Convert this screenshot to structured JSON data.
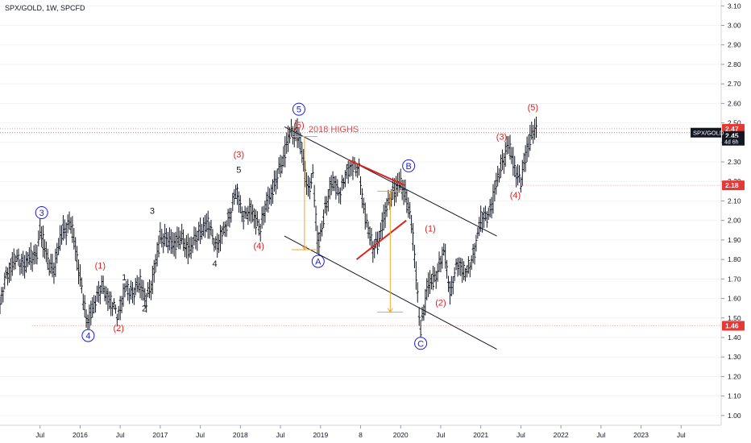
{
  "chart_data": {
    "type": "line",
    "title": "SPX/GOLD, 1W, SPCFD",
    "symbol_tag": "SPX/GOLD",
    "last_value": "2.45",
    "countdown": "4d 6h",
    "ylim": [
      0.95,
      3.13
    ],
    "xlim": [
      2015.0,
      2024.0
    ],
    "y_ticks": [
      "1.00",
      "1.10",
      "1.20",
      "1.30",
      "1.40",
      "1.50",
      "1.60",
      "1.70",
      "1.80",
      "1.90",
      "2.00",
      "2.10",
      "2.20",
      "2.30",
      "2.40",
      "2.50",
      "2.60",
      "2.70",
      "2.80",
      "2.90",
      "3.00",
      "3.10"
    ],
    "x_ticks": [
      {
        "t": 2015.5,
        "label": "Jul"
      },
      {
        "t": 2016.0,
        "label": "2016"
      },
      {
        "t": 2016.5,
        "label": "Jul"
      },
      {
        "t": 2017.0,
        "label": "2017"
      },
      {
        "t": 2017.5,
        "label": "Jul"
      },
      {
        "t": 2018.0,
        "label": "2018"
      },
      {
        "t": 2018.5,
        "label": "Jul"
      },
      {
        "t": 2019.0,
        "label": "2019"
      },
      {
        "t": 2019.5,
        "label": "8"
      },
      {
        "t": 2020.0,
        "label": "2020"
      },
      {
        "t": 2020.5,
        "label": "Jul"
      },
      {
        "t": 2021.0,
        "label": "2021"
      },
      {
        "t": 2021.5,
        "label": "Jul"
      },
      {
        "t": 2022.0,
        "label": "2022"
      },
      {
        "t": 2022.5,
        "label": "Jul"
      },
      {
        "t": 2023.0,
        "label": "2023"
      },
      {
        "t": 2023.5,
        "label": "Jul"
      }
    ],
    "price_path": [
      [
        2015.0,
        1.57
      ],
      [
        2015.08,
        1.72
      ],
      [
        2015.17,
        1.8
      ],
      [
        2015.3,
        1.78
      ],
      [
        2015.45,
        1.82
      ],
      [
        2015.5,
        1.95
      ],
      [
        2015.6,
        1.78
      ],
      [
        2015.68,
        1.75
      ],
      [
        2015.78,
        1.95
      ],
      [
        2015.88,
        1.98
      ],
      [
        2015.96,
        1.82
      ],
      [
        2016.03,
        1.62
      ],
      [
        2016.08,
        1.47
      ],
      [
        2016.15,
        1.55
      ],
      [
        2016.28,
        1.67
      ],
      [
        2016.38,
        1.58
      ],
      [
        2016.47,
        1.52
      ],
      [
        2016.55,
        1.64
      ],
      [
        2016.65,
        1.64
      ],
      [
        2016.75,
        1.67
      ],
      [
        2016.82,
        1.6
      ],
      [
        2016.9,
        1.67
      ],
      [
        2017.0,
        1.92
      ],
      [
        2017.12,
        1.88
      ],
      [
        2017.25,
        1.9
      ],
      [
        2017.38,
        1.85
      ],
      [
        2017.5,
        1.95
      ],
      [
        2017.6,
        1.98
      ],
      [
        2017.7,
        1.87
      ],
      [
        2017.8,
        1.95
      ],
      [
        2017.95,
        2.15
      ],
      [
        2018.05,
        2.02
      ],
      [
        2018.15,
        2.05
      ],
      [
        2018.25,
        1.95
      ],
      [
        2018.32,
        2.08
      ],
      [
        2018.45,
        2.2
      ],
      [
        2018.6,
        2.42
      ],
      [
        2018.72,
        2.46
      ],
      [
        2018.78,
        2.3
      ],
      [
        2018.85,
        2.15
      ],
      [
        2018.9,
        2.25
      ],
      [
        2018.97,
        1.85
      ],
      [
        2019.05,
        2.05
      ],
      [
        2019.15,
        2.2
      ],
      [
        2019.25,
        2.15
      ],
      [
        2019.38,
        2.3
      ],
      [
        2019.48,
        2.25
      ],
      [
        2019.55,
        2.05
      ],
      [
        2019.65,
        1.85
      ],
      [
        2019.72,
        1.9
      ],
      [
        2019.82,
        2.05
      ],
      [
        2019.9,
        2.15
      ],
      [
        2020.0,
        2.18
      ],
      [
        2020.08,
        2.12
      ],
      [
        2020.15,
        1.92
      ],
      [
        2020.2,
        1.68
      ],
      [
        2020.25,
        1.44
      ],
      [
        2020.35,
        1.68
      ],
      [
        2020.45,
        1.72
      ],
      [
        2020.55,
        1.85
      ],
      [
        2020.62,
        1.62
      ],
      [
        2020.72,
        1.8
      ],
      [
        2020.82,
        1.72
      ],
      [
        2020.92,
        1.85
      ],
      [
        2021.0,
        2.0
      ],
      [
        2021.12,
        2.05
      ],
      [
        2021.25,
        2.28
      ],
      [
        2021.35,
        2.38
      ],
      [
        2021.42,
        2.28
      ],
      [
        2021.5,
        2.18
      ],
      [
        2021.58,
        2.38
      ],
      [
        2021.65,
        2.45
      ],
      [
        2021.7,
        2.45
      ]
    ],
    "horizontal_levels": [
      {
        "value": 2.47,
        "label": "2.47"
      },
      {
        "value": 2.45,
        "label": "2.45"
      },
      {
        "value": 2.18,
        "label": "2.18"
      },
      {
        "value": 1.46,
        "label": "1.46"
      }
    ],
    "channel_lines": [
      {
        "from": [
          2018.55,
          2.48
        ],
        "to": [
          2021.2,
          1.92
        ]
      },
      {
        "from": [
          2018.55,
          1.92
        ],
        "to": [
          2021.2,
          1.34
        ]
      }
    ],
    "red_trendlines": [
      {
        "from": [
          2019.35,
          2.31
        ],
        "to": [
          2020.05,
          2.18
        ]
      },
      {
        "from": [
          2019.45,
          1.8
        ],
        "to": [
          2020.07,
          2.0
        ]
      }
    ],
    "measure_brackets": [
      {
        "t": 2018.8,
        "top": 2.43,
        "bottom": 1.85
      },
      {
        "t": 2019.87,
        "top": 2.15,
        "bottom": 1.53
      }
    ],
    "annotations": [
      {
        "text": "2018 HIGHS",
        "t": 2018.85,
        "v": 2.47,
        "color": "#e04b4b",
        "style": "plain"
      },
      {
        "text": "5",
        "t": 2018.73,
        "v": 2.57,
        "color": "#1b1bd8",
        "style": "circle"
      },
      {
        "text": "(5)",
        "t": 2018.73,
        "v": 2.49,
        "color": "#e02020",
        "style": "plain"
      },
      {
        "text": "(3)",
        "t": 2017.98,
        "v": 2.34,
        "color": "#e02020",
        "style": "plain"
      },
      {
        "text": "5",
        "t": 2017.98,
        "v": 2.26,
        "color": "#131722",
        "style": "plain"
      },
      {
        "text": "(4)",
        "t": 2018.23,
        "v": 1.87,
        "color": "#e02020",
        "style": "plain"
      },
      {
        "text": "A",
        "t": 2018.97,
        "v": 1.79,
        "color": "#1b1bd8",
        "style": "circle"
      },
      {
        "text": "B",
        "t": 2020.1,
        "v": 2.28,
        "color": "#1b1bd8",
        "style": "circle"
      },
      {
        "text": "C",
        "t": 2020.25,
        "v": 1.37,
        "color": "#1b1bd8",
        "style": "circle"
      },
      {
        "text": "(1)",
        "t": 2020.37,
        "v": 1.96,
        "color": "#e02020",
        "style": "plain"
      },
      {
        "text": "(2)",
        "t": 2020.5,
        "v": 1.58,
        "color": "#e02020",
        "style": "plain"
      },
      {
        "text": "(3)",
        "t": 2021.26,
        "v": 2.43,
        "color": "#e02020",
        "style": "plain"
      },
      {
        "text": "(4)",
        "t": 2021.43,
        "v": 2.13,
        "color": "#e02020",
        "style": "plain"
      },
      {
        "text": "(5)",
        "t": 2021.65,
        "v": 2.58,
        "color": "#e02020",
        "style": "plain"
      },
      {
        "text": "3",
        "t": 2015.52,
        "v": 2.04,
        "color": "#1b1bd8",
        "style": "circle"
      },
      {
        "text": "4",
        "t": 2016.1,
        "v": 1.41,
        "color": "#1b1bd8",
        "style": "circle"
      },
      {
        "text": "(1)",
        "t": 2016.25,
        "v": 1.77,
        "color": "#e02020",
        "style": "plain"
      },
      {
        "text": "(2)",
        "t": 2016.48,
        "v": 1.45,
        "color": "#e02020",
        "style": "plain"
      },
      {
        "text": "1",
        "t": 2016.55,
        "v": 1.71,
        "color": "#131722",
        "style": "plain"
      },
      {
        "text": "2",
        "t": 2016.8,
        "v": 1.55,
        "color": "#131722",
        "style": "plain"
      },
      {
        "text": "3",
        "t": 2016.9,
        "v": 2.05,
        "color": "#131722",
        "style": "plain"
      },
      {
        "text": "4",
        "t": 2017.68,
        "v": 1.78,
        "color": "#131722",
        "style": "plain"
      }
    ]
  }
}
